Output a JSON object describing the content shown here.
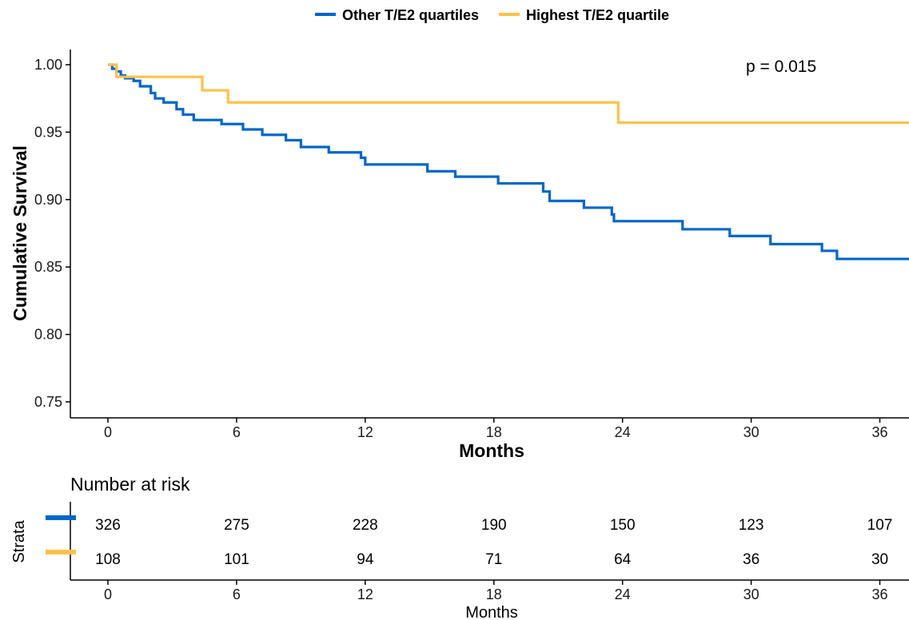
{
  "chart_data": {
    "type": "line",
    "subtype": "kaplan-meier step",
    "title": "",
    "xlabel": "Months",
    "ylabel": "Cumulative Survival",
    "xlim": [
      -2,
      38
    ],
    "ylim": [
      0.74,
      1.01
    ],
    "x_ticks": [
      0,
      6,
      12,
      18,
      24,
      30,
      36
    ],
    "x_tick_labels": [
      "0",
      "6",
      "12",
      "18",
      "24",
      "30",
      "36"
    ],
    "y_ticks": [
      0.75,
      0.8,
      0.85,
      0.9,
      0.95,
      1.0
    ],
    "y_tick_labels": [
      "0.75",
      "0.80",
      "0.85",
      "0.90",
      "0.95",
      "1.00"
    ],
    "grid": false,
    "legend_position": "top",
    "annotation": "p = 0.015",
    "series": [
      {
        "name": "Other T/E2 quartiles",
        "color": "#0066CC",
        "x": [
          0,
          0.2,
          0.4,
          0.6,
          0.8,
          1.2,
          1.5,
          2.0,
          2.2,
          2.6,
          3.2,
          3.5,
          4.0,
          5.3,
          6.3,
          7.2,
          8.3,
          9.0,
          10.3,
          11.8,
          12.0,
          14.9,
          16.2,
          18.2,
          20.3,
          20.6,
          22.2,
          23.5,
          23.6,
          26.8,
          29.0,
          30.9,
          33.3,
          34.0,
          38
        ],
        "y": [
          1.0,
          0.997,
          0.995,
          0.992,
          0.99,
          0.988,
          0.984,
          0.979,
          0.975,
          0.972,
          0.967,
          0.963,
          0.959,
          0.956,
          0.952,
          0.948,
          0.944,
          0.939,
          0.935,
          0.931,
          0.926,
          0.921,
          0.917,
          0.912,
          0.906,
          0.899,
          0.894,
          0.889,
          0.884,
          0.878,
          0.873,
          0.867,
          0.862,
          0.856,
          0.856
        ]
      },
      {
        "name": "Highest T/E2 quartile",
        "color": "#FFC04A",
        "x": [
          0,
          0.4,
          4.4,
          5.6,
          23.8,
          38
        ],
        "y": [
          1.0,
          0.991,
          0.981,
          0.972,
          0.957,
          0.957
        ]
      }
    ],
    "risk_table": {
      "title": "Number at risk",
      "ylabel": "Strata",
      "xlabel": "Months",
      "times": [
        0,
        6,
        12,
        18,
        24,
        30,
        36
      ],
      "rows": [
        {
          "name": "Other T/E2 quartiles",
          "color": "#0066CC",
          "values": [
            "326",
            "275",
            "228",
            "190",
            "150",
            "123",
            "107"
          ]
        },
        {
          "name": "Highest T/E2 quartile",
          "color": "#FFC04A",
          "values": [
            "108",
            "101",
            "94",
            "71",
            "64",
            "36",
            "30"
          ]
        }
      ]
    }
  }
}
